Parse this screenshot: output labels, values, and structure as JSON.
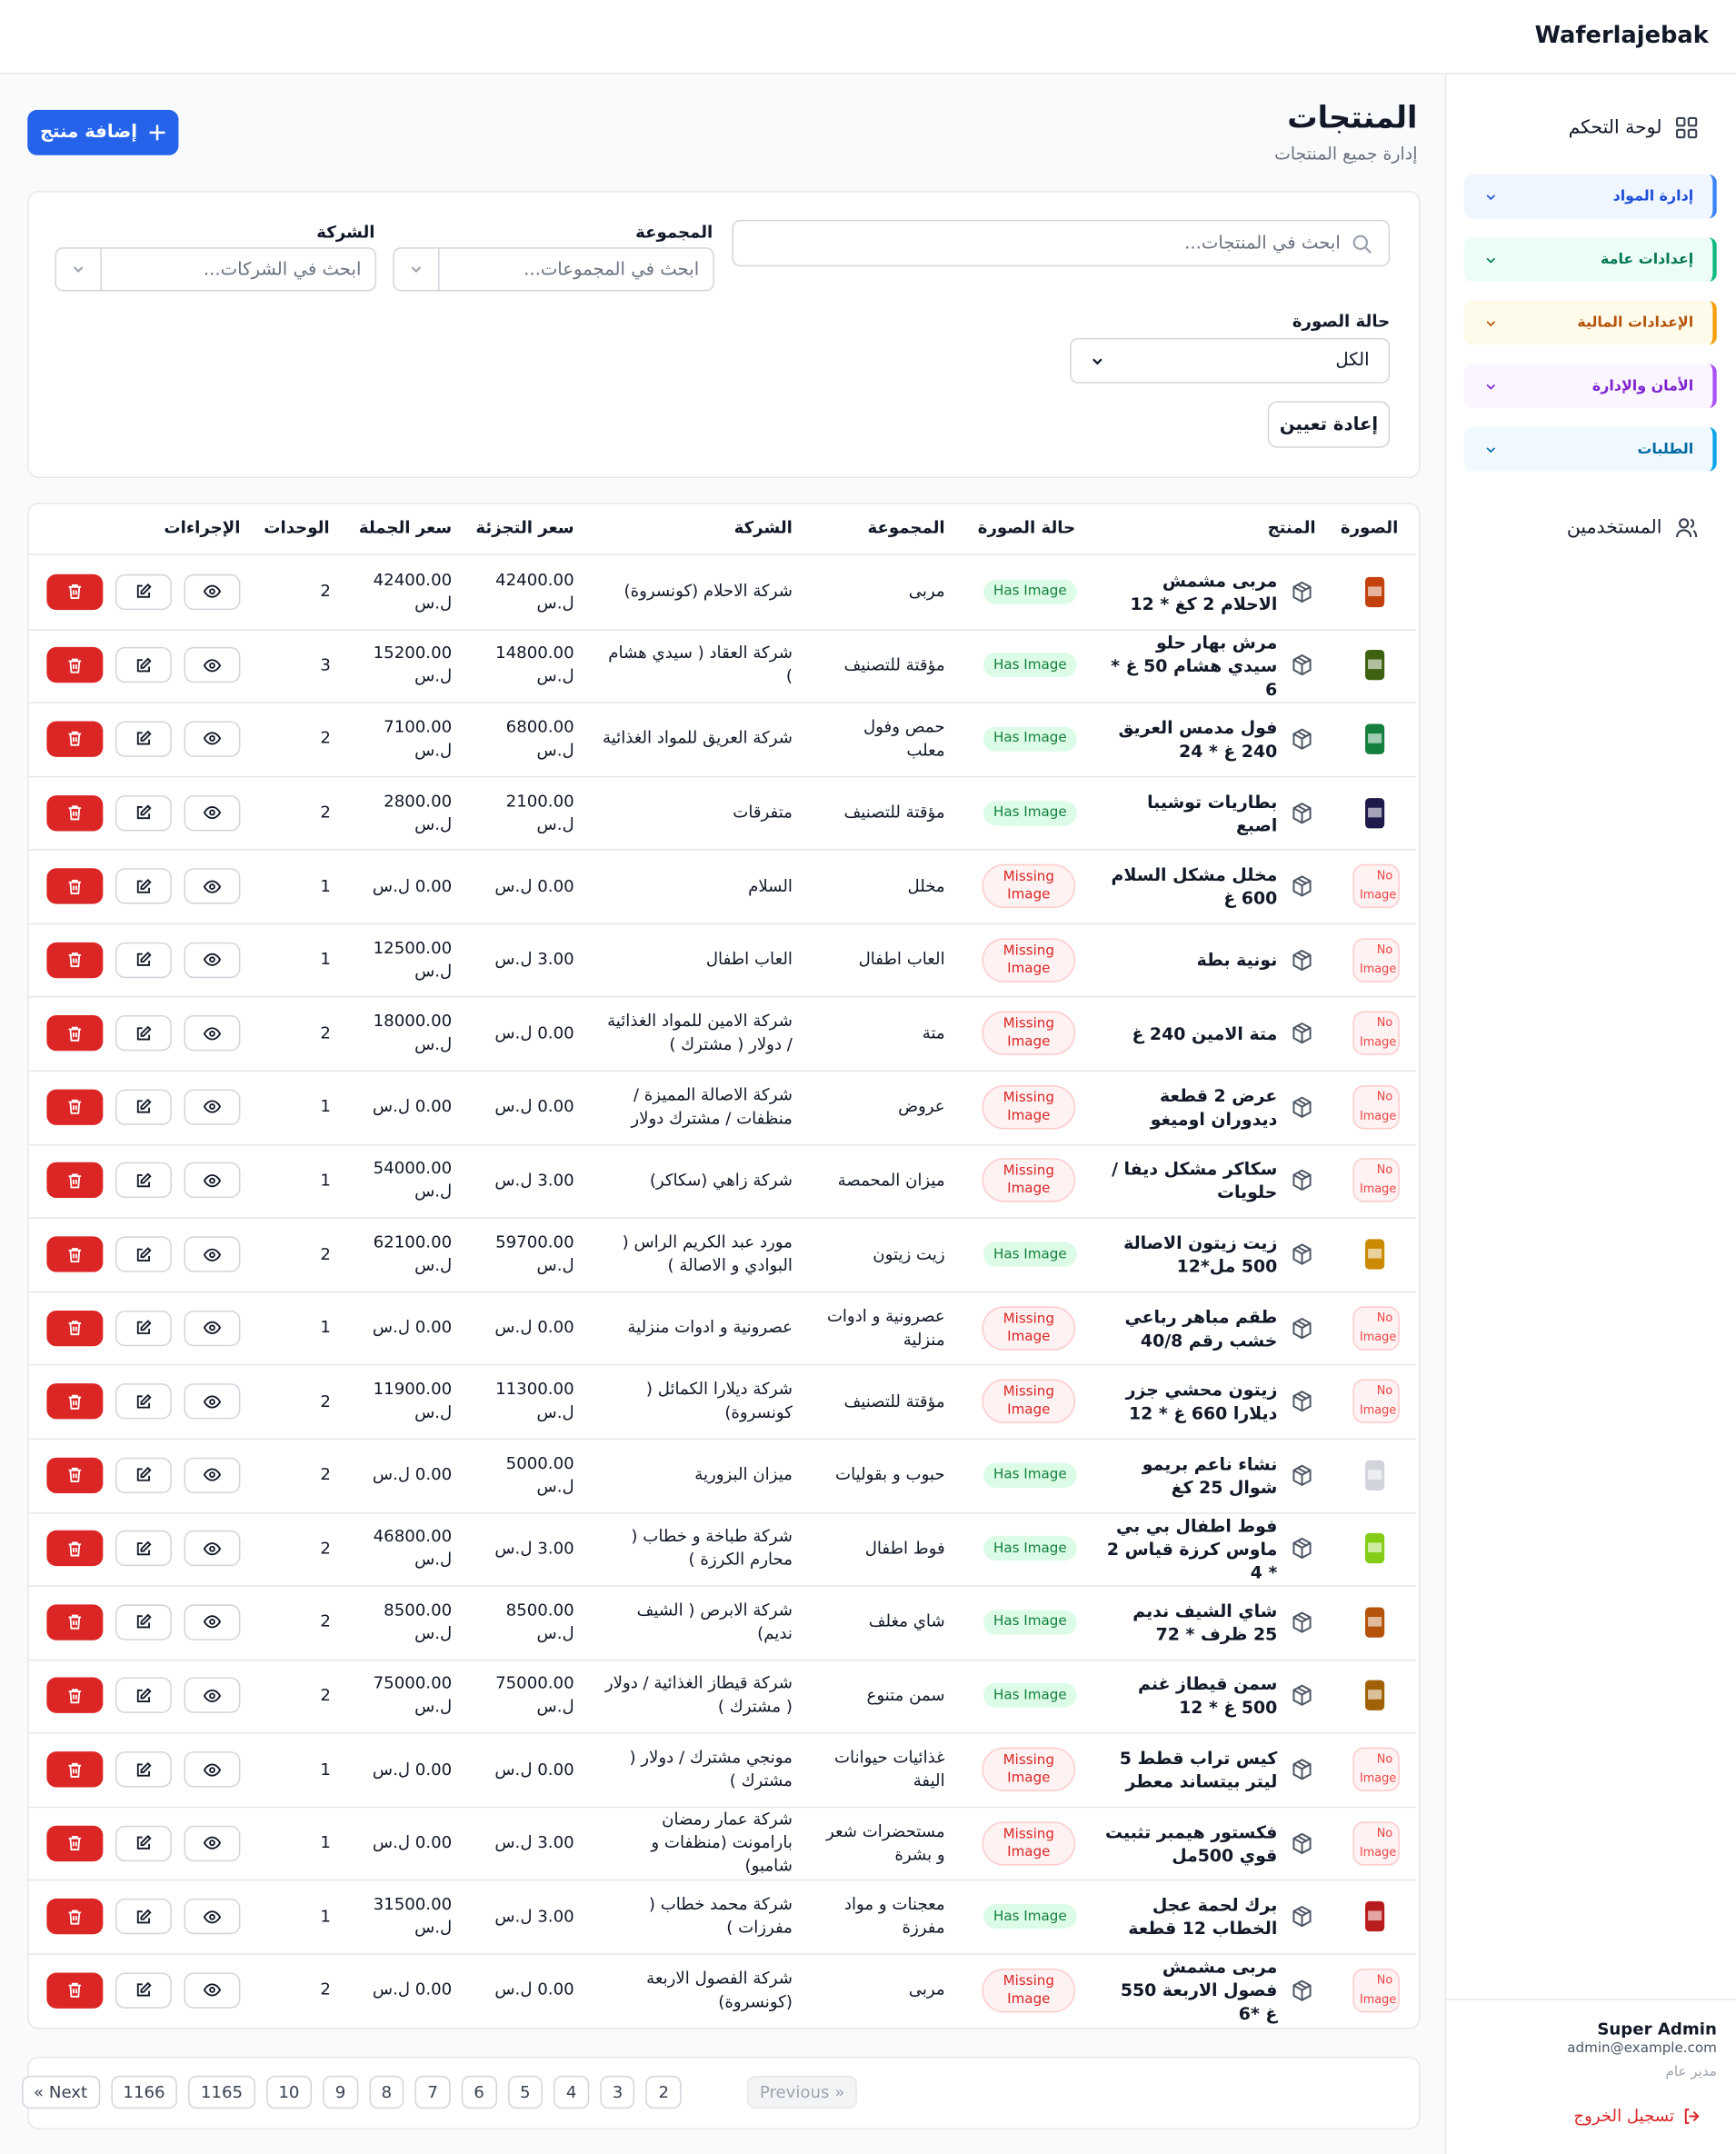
{
  "header": {
    "brand": "Waferlajebak"
  },
  "sidebar": {
    "dashboard": "لوحة التحكم",
    "sections": [
      "إدارة المواد",
      "إعدادات عامة",
      "الإعدادات المالية",
      "الأمان والإدارة",
      "الطلبات"
    ],
    "users": "المستخدمين",
    "user_name": "Super Admin",
    "user_email": "admin@example.com",
    "user_role": "مدير عام",
    "logout": "تسجيل الخروج"
  },
  "page": {
    "title": "المنتجات",
    "subtitle": "إدارة جميع المنتجات",
    "add_button": "إضافة منتج"
  },
  "filters": {
    "search_placeholder": "ابحث في المنتجات...",
    "group_label": "المجموعة",
    "group_placeholder": "ابحث في المجموعات...",
    "company_label": "الشركة",
    "company_placeholder": "ابحث في الشركات...",
    "image_status_label": "حالة الصورة",
    "image_status_value": "الكل",
    "reset": "إعادة تعيين"
  },
  "table": {
    "headers": [
      "الصورة",
      "المنتج",
      "حالة الصورة",
      "المجموعة",
      "الشركة",
      "سعر التجزئة",
      "سعر الجملة",
      "الوحدات",
      "الإجراءات"
    ],
    "rows": [
      {
        "name": "مربى مشمش الاحلام 2 كغ * 12",
        "status": "Has Image",
        "group": "مربى",
        "company": "شركة الاحلام (كونسروة)",
        "retail": "42400.00 ل.س",
        "wholesale": "42400.00 ل.س",
        "units": 2
      },
      {
        "name": "مرش بهار حلو سيدي هشام 50 غ * 6",
        "status": "Has Image",
        "group": "مؤقتة للتصنيف",
        "company": "شركة العقاد ( سيدي هشام )",
        "retail": "14800.00 ل.س",
        "wholesale": "15200.00 ل.س",
        "units": 3
      },
      {
        "name": "فول مدمس العريق 240 غ * 24",
        "status": "Has Image",
        "group": "حمص وفول معلب",
        "company": "شركة العريق للمواد الغذائية",
        "retail": "6800.00 ل.س",
        "wholesale": "7100.00 ل.س",
        "units": 2
      },
      {
        "name": "بطاريات توشيبا اصبع",
        "status": "Has Image",
        "group": "مؤقتة للتصنيف",
        "company": "متفرقات",
        "retail": "2100.00 ل.س",
        "wholesale": "2800.00 ل.س",
        "units": 2
      },
      {
        "name": "مخلل مشكل السلام 600 غ",
        "status": "Missing Image",
        "thumbnail": "No Image",
        "group": "مخلل",
        "company": "السلام",
        "retail": "0.00 ل.س",
        "wholesale": "0.00 ل.س",
        "units": 1
      },
      {
        "name": "نونية بطة",
        "status": "Missing Image",
        "thumbnail": "No Image",
        "group": "العاب اطفال",
        "company": "العاب اطفال",
        "retail": "3.00 ل.س",
        "wholesale": "12500.00 ل.س",
        "units": 1
      },
      {
        "name": "متة الامين 240 غ",
        "status": "Missing Image",
        "thumbnail": "No Image",
        "group": "متة",
        "company": "شركة الامين للمواد الغذائية / دولار ( مشترك )",
        "retail": "0.00 ل.س",
        "wholesale": "18000.00 ل.س",
        "units": 2
      },
      {
        "name": "عرض 2 قطعة ديدوران اوميغو",
        "status": "Missing Image",
        "thumbnail": "No Image",
        "group": "عروض",
        "company": "شركة الاصالة المميزة / منظفات / مشترك دولار",
        "retail": "0.00 ل.س",
        "wholesale": "0.00 ل.س",
        "units": 1
      },
      {
        "name": "سكاكر مشكل ديفا / حلويات",
        "status": "Missing Image",
        "thumbnail": "No Image",
        "group": "ميزان المحمصة",
        "company": "شركة زاهي (سكاكر)",
        "retail": "3.00 ل.س",
        "wholesale": "54000.00 ل.س",
        "units": 1
      },
      {
        "name": "زيت زيتون الاصالة 500 مل*12",
        "status": "Has Image",
        "group": "زيت زيتون",
        "company": "مورد عبد الكريم الراس ( البوادي و الاصالة )",
        "retail": "59700.00 ل.س",
        "wholesale": "62100.00 ل.س",
        "units": 2
      },
      {
        "name": "طقم مباهر رباعي خشب رقم 40/8",
        "status": "Missing Image",
        "thumbnail": "No Image",
        "group": "عصرونية و ادوات منزلية",
        "company": "عصرونية و ادوات منزلية",
        "retail": "0.00 ل.س",
        "wholesale": "0.00 ل.س",
        "units": 1
      },
      {
        "name": "زيتون محشي جزر ديلارا 660 غ * 12",
        "status": "Missing Image",
        "thumbnail": "No Image",
        "group": "مؤقتة للتصنيف",
        "company": "شركة ديلارا الكمائل ( كونسروة)",
        "retail": "11300.00 ل.س",
        "wholesale": "11900.00 ل.س",
        "units": 2
      },
      {
        "name": "نشاء ناعم بريمو شوال 25 كغ",
        "status": "Has Image",
        "group": "حبوب و بقوليات",
        "company": "ميزان البزورية",
        "retail": "5000.00 ل.س",
        "wholesale": "0.00 ل.س",
        "units": 2
      },
      {
        "name": "فوط اطفال بي بي ماوس كرزة قياس 2 * 4",
        "status": "Has Image",
        "group": "فوط اطفال",
        "company": "شركة طباخة و خطاب ( محارم الكرزة )",
        "retail": "3.00 ل.س",
        "wholesale": "46800.00 ل.س",
        "units": 2
      },
      {
        "name": "شاي الشيف نديم 25 ظرف * 72",
        "status": "Has Image",
        "group": "شاي مغلف",
        "company": "شركة الابرص ( الشيف نديم)",
        "retail": "8500.00 ل.س",
        "wholesale": "8500.00 ل.س",
        "units": 2
      },
      {
        "name": "سمن قيطاز غنم 500 غ * 12",
        "status": "Has Image",
        "group": "سمن متنوع",
        "company": "شركة قيطاز الغذائية / دولار ( مشترك )",
        "retail": "75000.00 ل.س",
        "wholesale": "75000.00 ل.س",
        "units": 2
      },
      {
        "name": "كيس تراب قطط 5 ليتر بيتساند معطر",
        "status": "Missing Image",
        "thumbnail": "No Image",
        "group": "غذائيات حيوانات اليفة",
        "company": "مونجي مشترك / دولار ( مشترك )",
        "retail": "0.00 ل.س",
        "wholesale": "0.00 ل.س",
        "units": 1
      },
      {
        "name": "فكستور هيمبر تثبيت قوي 500مل",
        "status": "Missing Image",
        "thumbnail": "No Image",
        "group": "مستحضرات شعر و بشرة",
        "company": "شركة عمار رمضان بارامونت (منظفات و شامبو)",
        "retail": "3.00 ل.س",
        "wholesale": "0.00 ل.س",
        "units": 1
      },
      {
        "name": "برك لحمة عجل الخطاب 12 قطعة",
        "status": "Has Image",
        "group": "معجنات و مواد مفرزة",
        "company": "شركة محمد خطاب ( مفرزات )",
        "retail": "3.00 ل.س",
        "wholesale": "31500.00 ل.س",
        "units": 1
      },
      {
        "name": "مربى مشمش فصول الاربعة 550 غ *6",
        "status": "Missing Image",
        "thumbnail": "No Image",
        "group": "مربى",
        "company": "شركة الفصول الاربعة (كونسروة)",
        "retail": "0.00 ل.س",
        "wholesale": "0.00 ل.س",
        "units": 2
      }
    ]
  },
  "pagination": [
    "Previous »",
    "2",
    "3",
    "4",
    "5",
    "6",
    "7",
    "8",
    "9",
    "10",
    "1165",
    "1166",
    "« Next"
  ]
}
